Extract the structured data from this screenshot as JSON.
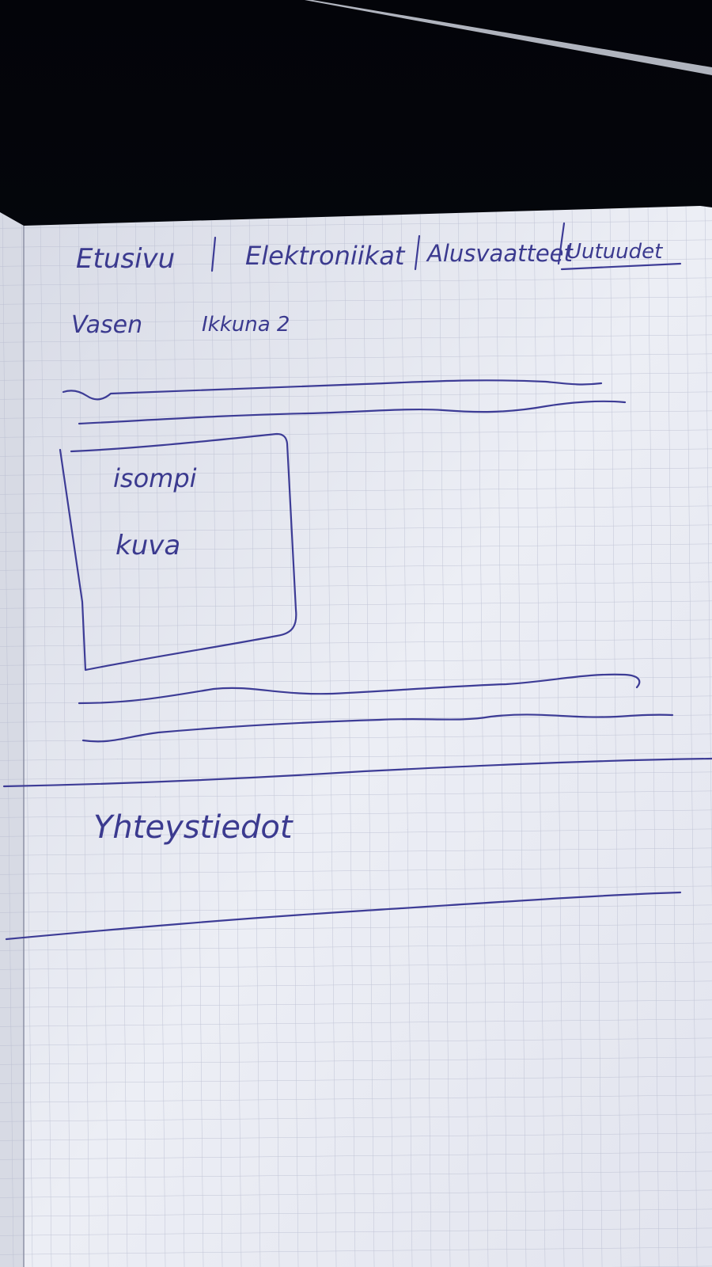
{
  "sketch": {
    "nav": {
      "item_1": "Etusivu",
      "item_2": "Elektroniikat",
      "item_3": "Alusvaatteet",
      "item_4": "Uutuudet"
    },
    "row_left": "Vasen",
    "row_right": "Ikkuna 2",
    "image_box": {
      "line_1": "isompi",
      "line_2": "kuva"
    },
    "footer_label": "Yhteystiedot"
  },
  "colors": {
    "ink": "#3d3c96",
    "paper": "#e6e8f1",
    "grid": "#b9bdd0",
    "background": "#05070d"
  }
}
